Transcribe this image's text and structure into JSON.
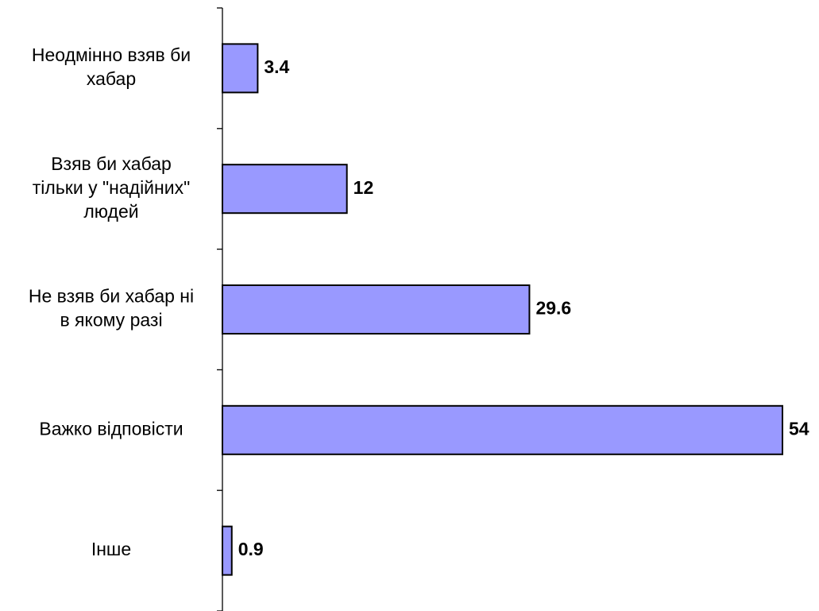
{
  "chart_data": {
    "type": "bar",
    "orientation": "horizontal",
    "title": "",
    "xlabel": "",
    "ylabel": "",
    "categories": [
      [
        "Неодмінно взяв би",
        "хабар"
      ],
      [
        "Взяв би хабар",
        "тільки у \"надійних\"",
        "людей"
      ],
      [
        "Не взяв би хабар ні",
        "в якому разі"
      ],
      [
        "Важко відповісти"
      ],
      [
        "Інше"
      ]
    ],
    "values": [
      3.4,
      12,
      29.6,
      54,
      0.9
    ],
    "value_labels": [
      "3.4",
      "12",
      "29.6",
      "54",
      "0.9"
    ],
    "xlim": [
      0,
      54
    ],
    "grid": false,
    "legend": "none",
    "bar_color": "#9999ff",
    "bar_edge_color": "#000000"
  }
}
